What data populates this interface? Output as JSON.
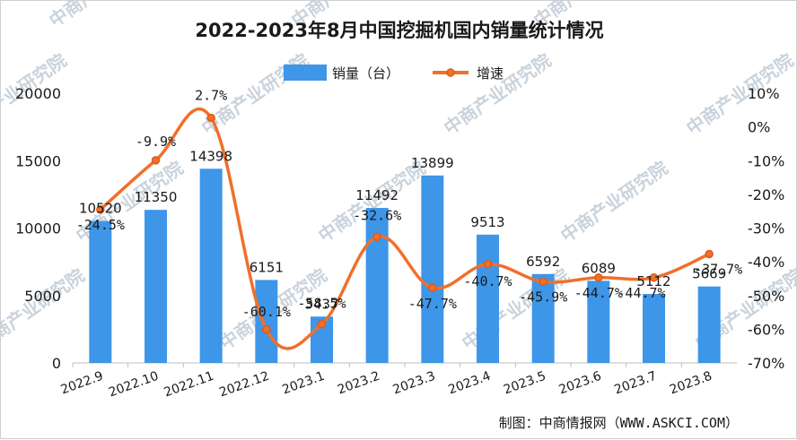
{
  "chart_data": {
    "type": "bar+line",
    "title": "2022-2023年8月中国挖掘机国内销量统计情况",
    "categories": [
      "2022.9",
      "2022.10",
      "2022.11",
      "2022.12",
      "2023.1",
      "2023.2",
      "2023.3",
      "2023.4",
      "2023.5",
      "2023.6",
      "2023.7",
      "2023.8"
    ],
    "series": [
      {
        "name": "销量（台）",
        "type": "bar",
        "axis": "left",
        "color": "#3d96e8",
        "values": [
          10520,
          11350,
          14398,
          6151,
          3437,
          11492,
          13899,
          9513,
          6592,
          6089,
          5112,
          5669
        ],
        "labels": [
          "10520",
          "11350",
          "14398",
          "6151",
          "3437",
          "11492",
          "13899",
          "9513",
          "6592",
          "6089",
          "5112",
          "5669"
        ]
      },
      {
        "name": "增速",
        "type": "line",
        "axis": "right",
        "color": "#f0702a",
        "values": [
          -24.5,
          -9.9,
          2.7,
          -60.1,
          -58.5,
          -32.6,
          -47.7,
          -40.7,
          -45.9,
          -44.7,
          -44.7,
          -37.7
        ],
        "labels": [
          "-24.5%",
          "-9.9%",
          "2.7%",
          "-60.1%",
          "-58.5%",
          "-32.6%",
          "-47.7%",
          "-40.7%",
          "-45.9%",
          "-44.7%",
          "-44.7%",
          "-37.7%"
        ]
      }
    ],
    "y_left": {
      "ylim": [
        0,
        20000
      ],
      "ticks": [
        "0",
        "5000",
        "10000",
        "15000",
        "20000"
      ]
    },
    "y_right": {
      "ylim": [
        -70,
        10
      ],
      "ticks": [
        "-70%",
        "-60%",
        "-50%",
        "-40%",
        "-30%",
        "-20%",
        "-10%",
        "0%",
        "10%"
      ]
    },
    "legend_position": "top-center",
    "grid": false,
    "source": "制图：中商情报网（WWW.ASKCI.COM）"
  },
  "watermark": "中商产业研究院"
}
